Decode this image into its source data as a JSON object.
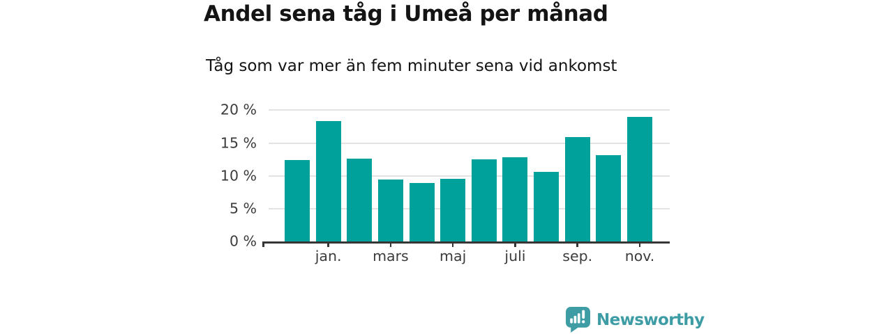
{
  "chart_data": {
    "type": "bar",
    "title": "Andel sena tåg i Umeå per månad",
    "subtitle": "Tåg som var mer än fem minuter sena vid ankomst",
    "categories": [
      "",
      "jan.",
      "",
      "mars",
      "",
      "maj",
      "",
      "juli",
      "",
      "sep.",
      "",
      "nov."
    ],
    "values": [
      12.4,
      18.3,
      12.6,
      9.4,
      8.9,
      9.6,
      12.5,
      12.8,
      10.6,
      15.9,
      13.2,
      19.0
    ],
    "unit": "%",
    "y_ticks": [
      {
        "value": 0,
        "label": "0 %"
      },
      {
        "value": 5,
        "label": "5 %"
      },
      {
        "value": 10,
        "label": "10 %"
      },
      {
        "value": 15,
        "label": "15 %"
      },
      {
        "value": 20,
        "label": "20 %"
      }
    ],
    "ylim": [
      0,
      21
    ],
    "grid": true,
    "legend": "none",
    "xlabel": "",
    "ylabel": ""
  },
  "footer": {
    "brand": "Newsworthy"
  },
  "colors": {
    "bar": "#00a19a",
    "brand": "#3e9ca5",
    "grid": "#e3e3e3",
    "axis": "#363636",
    "label": "#3c3c3c",
    "title": "#141414"
  }
}
